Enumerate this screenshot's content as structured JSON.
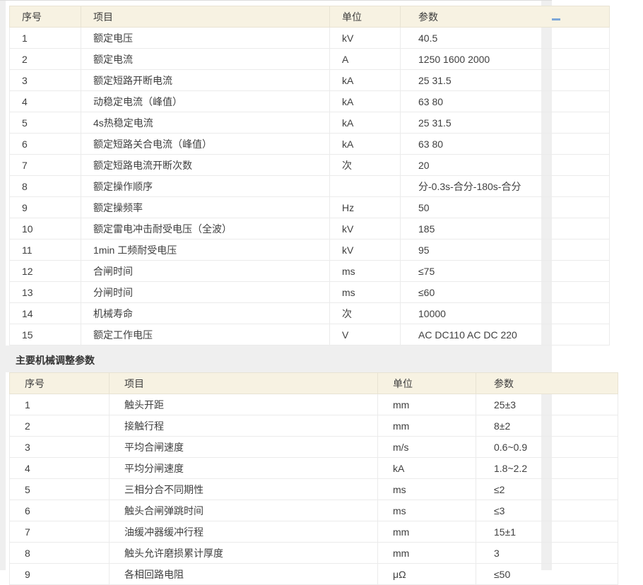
{
  "colors": {
    "page_gray": "#efefef",
    "header_bg": "#f7f2e2",
    "accent_dash": "#7da7d8"
  },
  "section_title": "主要机械调整参数",
  "columns": [
    "序号",
    "项目",
    "单位",
    "参数"
  ],
  "tables": {
    "rated": {
      "rows": [
        [
          "1",
          "额定电压",
          "kV",
          "40.5"
        ],
        [
          "2",
          "额定电流",
          "A",
          "1250 1600 2000"
        ],
        [
          "3",
          "额定短路开断电流",
          "kA",
          "25 31.5"
        ],
        [
          "4",
          "动稳定电流（峰值）",
          "kA",
          "63 80"
        ],
        [
          "5",
          "4s热稳定电流",
          "kA",
          "25 31.5"
        ],
        [
          "6",
          "额定短路关合电流（峰值）",
          "kA",
          "63 80"
        ],
        [
          "7",
          "额定短路电流开断次数",
          "次",
          "20"
        ],
        [
          "8",
          "额定操作顺序",
          "",
          "分-0.3s-合分-180s-合分"
        ],
        [
          "9",
          "额定操频率",
          "Hz",
          "50"
        ],
        [
          "10",
          "额定雷电冲击耐受电压（全波）",
          "kV",
          "185"
        ],
        [
          "11",
          "1min 工频耐受电压",
          "kV",
          "95"
        ],
        [
          "12",
          "合闸时间",
          "ms",
          "≤75"
        ],
        [
          "13",
          "分闸时间",
          "ms",
          "≤60"
        ],
        [
          "14",
          "机械寿命",
          "次",
          "10000"
        ],
        [
          "15",
          "额定工作电压",
          "V",
          "AC DC110 AC DC 220"
        ]
      ]
    },
    "mechanical": {
      "rows": [
        [
          "1",
          "触头开距",
          "mm",
          "25±3"
        ],
        [
          "2",
          "接触行程",
          "mm",
          "8±2"
        ],
        [
          "3",
          "平均合闸速度",
          "m/s",
          "0.6~0.9"
        ],
        [
          "4",
          "平均分闸速度",
          "kA",
          "1.8~2.2"
        ],
        [
          "5",
          "三相分合不同期性",
          "ms",
          "≤2"
        ],
        [
          "6",
          "触头合闸弹跳时间",
          "ms",
          "≤3"
        ],
        [
          "7",
          "油缓冲器缓冲行程",
          "mm",
          "15±1"
        ],
        [
          "8",
          "触头允许磨损累计厚度",
          "mm",
          "3"
        ],
        [
          "9",
          "各相回路电阻",
          "μΩ",
          "≤50"
        ]
      ]
    }
  }
}
